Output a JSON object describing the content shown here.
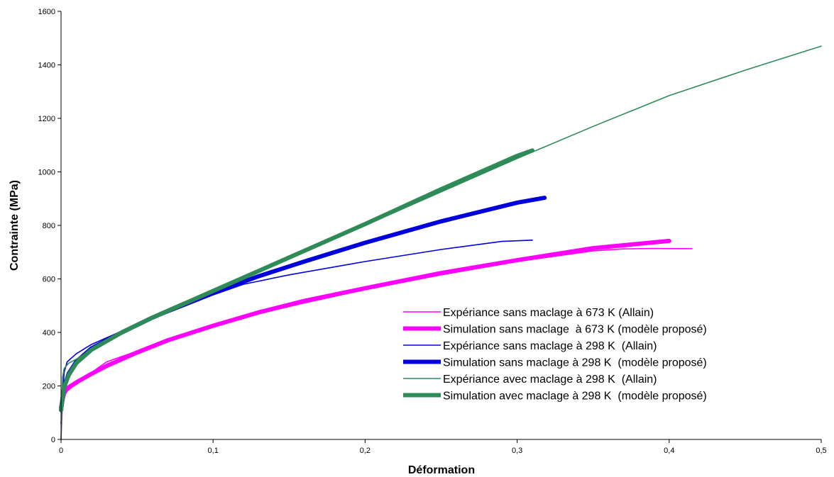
{
  "chart_data": {
    "type": "line",
    "title": "",
    "xlabel": "Déformation",
    "ylabel": "Contrainte (MPa)",
    "xlim": [
      0,
      0.5
    ],
    "ylim": [
      0,
      1600
    ],
    "x_ticks": [
      0,
      0.1,
      0.2,
      0.3,
      0.4,
      0.5
    ],
    "x_tick_labels": [
      "0",
      "0,1",
      "0,2",
      "0,3",
      "0,4",
      "0,5"
    ],
    "y_ticks": [
      0,
      200,
      400,
      600,
      800,
      1000,
      1200,
      1400,
      1600
    ],
    "y_tick_labels": [
      "0",
      "200",
      "400",
      "600",
      "800",
      "1000",
      "1200",
      "1400",
      "1600"
    ],
    "grid": false,
    "legend_position": "bottom-right",
    "series": [
      {
        "name": "Expériance sans maclage à 673 K (Allain)",
        "color": "#ff00ff",
        "style": "thin",
        "x": [
          0,
          0.001,
          0.002,
          0.004,
          0.007,
          0.01,
          0.02,
          0.03,
          0.05,
          0.07,
          0.1,
          0.13,
          0.16,
          0.2,
          0.25,
          0.3,
          0.35,
          0.37,
          0.39,
          0.4,
          0.415
        ],
        "y": [
          0,
          140,
          160,
          180,
          195,
          205,
          250,
          290,
          330,
          370,
          420,
          470,
          510,
          560,
          615,
          665,
          705,
          712,
          714,
          713,
          713
        ]
      },
      {
        "name": "Simulation sans maclage  à 673 K (modèle proposé)",
        "color": "#ff00ff",
        "style": "thick",
        "x": [
          0,
          0.002,
          0.005,
          0.01,
          0.02,
          0.03,
          0.05,
          0.07,
          0.1,
          0.13,
          0.16,
          0.2,
          0.25,
          0.3,
          0.35,
          0.4
        ],
        "y": [
          120,
          175,
          195,
          213,
          245,
          275,
          325,
          370,
          425,
          475,
          518,
          565,
          622,
          670,
          715,
          742
        ]
      },
      {
        "name": "Expériance sans maclage à 298 K  (Allain)",
        "color": "#0000dd",
        "style": "thin",
        "x": [
          0,
          0.002,
          0.004,
          0.01,
          0.02,
          0.04,
          0.06,
          0.08,
          0.1,
          0.12,
          0.15,
          0.2,
          0.25,
          0.29,
          0.31
        ],
        "y": [
          60,
          250,
          290,
          320,
          355,
          405,
          450,
          495,
          540,
          580,
          615,
          665,
          710,
          740,
          745
        ]
      },
      {
        "name": "Simulation sans maclage à 298 K  (modèle proposé)",
        "color": "#0000dd",
        "style": "thick",
        "x": [
          0,
          0.002,
          0.005,
          0.01,
          0.02,
          0.04,
          0.06,
          0.08,
          0.1,
          0.13,
          0.16,
          0.2,
          0.25,
          0.3,
          0.318
        ],
        "y": [
          110,
          195,
          245,
          290,
          340,
          400,
          455,
          505,
          548,
          610,
          665,
          735,
          815,
          885,
          903
        ]
      },
      {
        "name": "Expériance avec maclage à 298 K  (Allain)",
        "color": "#2e8b57",
        "style": "thin",
        "x": [
          0,
          0.001,
          0.002,
          0.005,
          0.01,
          0.02,
          0.04,
          0.06,
          0.08,
          0.1,
          0.13,
          0.16,
          0.2,
          0.25,
          0.3,
          0.35,
          0.4,
          0.45,
          0.5
        ],
        "y": [
          0,
          230,
          265,
          285,
          300,
          335,
          400,
          455,
          505,
          555,
          625,
          700,
          800,
          925,
          1050,
          1170,
          1285,
          1380,
          1470
        ]
      },
      {
        "name": "Simulation avec maclage à 298 K  (modèle proposé)",
        "color": "#2e8b57",
        "style": "thick",
        "x": [
          0,
          0.002,
          0.005,
          0.01,
          0.02,
          0.04,
          0.06,
          0.08,
          0.1,
          0.13,
          0.16,
          0.2,
          0.25,
          0.3,
          0.31
        ],
        "y": [
          110,
          195,
          240,
          285,
          335,
          400,
          455,
          505,
          555,
          630,
          705,
          805,
          935,
          1060,
          1080
        ]
      }
    ]
  }
}
